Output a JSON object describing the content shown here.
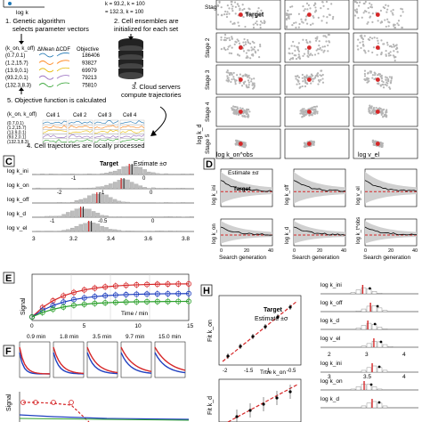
{
  "panelA": {
    "top_formula_1": "k = 93.2, k = 100",
    "top_formula_2": "= 132.3, k = 100",
    "axis_label": "log k",
    "step1_line1": "1. Genetic algorithm",
    "step1_line2": "selects parameter vectors",
    "step2_line1": "2. Cell ensembles are",
    "step2_line2": "initialized for each set",
    "step3_line1": "3. Cloud servers",
    "step3_line2": "compute trajectories",
    "step4": "4. Cell trajectories are locally processed",
    "step5": "5. Objective function is calculated",
    "table_headers": [
      "(k_on, k_off)",
      "ΔMean ΔCDF",
      "Objective"
    ],
    "table_rows": [
      {
        "params": "(0.7,0.1)",
        "objective": "186406",
        "color": "#1f77b4"
      },
      {
        "params": "(1.2,15.7)",
        "objective": "93827",
        "color": "#ff7f0e"
      },
      {
        "params": "(13.9,0.1)",
        "objective": "69979",
        "color": "#e6b800"
      },
      {
        "params": "(93.2,0.1)",
        "objective": "79213",
        "color": "#9467bd"
      },
      {
        "params": "(132.3,8.3)",
        "objective": "75810",
        "color": "#2ca02c"
      }
    ],
    "cell_headers": [
      "(k_on, k_off)",
      "Cell 1",
      "Cell 2",
      "Cell 3",
      "Cell 4"
    ],
    "cell_rows": [
      {
        "params": "(0.7,0.1)",
        "color": "#1f77b4"
      },
      {
        "params": "(1.2,15.7)",
        "color": "#ff7f0e"
      },
      {
        "params": "(13.9,0.1)",
        "color": "#e6b800"
      },
      {
        "params": "(93.2,0.1)",
        "color": "#9467bd"
      },
      {
        "params": "(132.3,8.3)",
        "color": "#2ca02c"
      }
    ]
  },
  "panelB": {
    "stage_labels": [
      "Stage 2",
      "Stage 3",
      "Stage 4",
      "Stage 5"
    ],
    "target_label": "Target",
    "y_label": "log k_d",
    "x_labels": [
      "log k_on^obs",
      "log v_el"
    ]
  },
  "panelC": {
    "label": "C",
    "legend_target": "Target",
    "legend_estimate": "Estimate ±σ",
    "rows": [
      "log k_ini",
      "log k_on",
      "log k_off",
      "log k_d",
      "log v_el"
    ],
    "ticks": [
      "-1",
      "0",
      "-2",
      "-1",
      "0",
      "-1",
      "-0.5",
      "0",
      "3",
      "3.2",
      "3.4",
      "3.6",
      "3.8"
    ]
  },
  "panelD": {
    "label": "D",
    "legend_estimate": "Estimate ±σ",
    "legend_target": "Target",
    "y_labels": [
      "log k_ini",
      "log k_off",
      "log v_el",
      "log k_on",
      "log k_d",
      "log k_t^obs"
    ],
    "x_label": "Search generation",
    "x_ticks": [
      "0",
      "20",
      "40"
    ]
  },
  "panelE": {
    "label": "E",
    "y_label": "Signal",
    "x_label": "Time / min",
    "x_ticks": [
      "0",
      "5",
      "10",
      "15"
    ],
    "time_labels": [
      "0.9 min",
      "1.8 min",
      "3.5 min",
      "9.7 min",
      "15.0 min"
    ]
  },
  "panelF": {
    "label": "F"
  },
  "panelG": {
    "y_label": "Signal"
  },
  "panelH": {
    "label": "H",
    "legend_target": "Target",
    "legend_estimate": "Estimate ±σ",
    "y_label": "Fit k_on",
    "x_label": "True k_on",
    "x_ticks": [
      "-2",
      "-1.5",
      "-1",
      "-0.5"
    ],
    "y_label_2": "Fit k_d"
  },
  "panelRight": {
    "rows": [
      "log k_ini",
      "log k_off",
      "log k_d",
      "log v_el",
      "log k_ini",
      "log k_on",
      "log k_d"
    ],
    "ticks": [
      "2",
      "3",
      "4",
      "3",
      "3.5",
      "4"
    ]
  },
  "colors": {
    "blue": "#1f3fbf",
    "green": "#2ca02c",
    "red": "#d62728",
    "gray": "#b0b0b0"
  }
}
